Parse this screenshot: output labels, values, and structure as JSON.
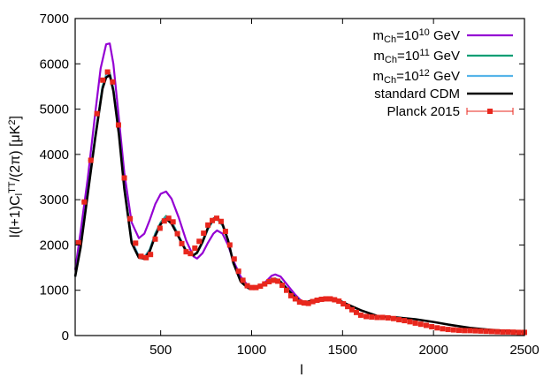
{
  "chart_data": {
    "type": "line",
    "xlabel": "l",
    "ylabel_parts": [
      "l(l+1)C",
      "l",
      "TT",
      "/(2π) [μK",
      "2",
      "]"
    ],
    "xlim": [
      30,
      2500
    ],
    "ylim": [
      0,
      7000
    ],
    "xticks": [
      500,
      1000,
      1500,
      2000,
      2500
    ],
    "yticks": [
      0,
      1000,
      2000,
      3000,
      4000,
      5000,
      6000,
      7000
    ],
    "grid": false,
    "legend_position": "top-right",
    "series": [
      {
        "legend_parts": [
          "m",
          "Ch",
          "=10",
          "10",
          " GeV"
        ],
        "color": "#9400d3",
        "kind": "line",
        "x": [
          30,
          60,
          100,
          140,
          170,
          200,
          220,
          240,
          270,
          300,
          340,
          380,
          410,
          440,
          470,
          500,
          530,
          560,
          600,
          640,
          680,
          700,
          730,
          760,
          790,
          810,
          840,
          870,
          900,
          940,
          980,
          1000,
          1040,
          1080,
          1110,
          1130,
          1160,
          1200,
          1240,
          1270,
          1300,
          1340,
          1380,
          1420,
          1450,
          1480,
          1520
        ],
        "y": [
          1450,
          2300,
          3500,
          4900,
          5900,
          6430,
          6450,
          6000,
          4800,
          3600,
          2500,
          2150,
          2250,
          2550,
          2900,
          3130,
          3180,
          3020,
          2600,
          2100,
          1750,
          1700,
          1820,
          2050,
          2250,
          2320,
          2250,
          2000,
          1650,
          1300,
          1100,
          1060,
          1080,
          1200,
          1320,
          1350,
          1300,
          1100,
          900,
          780,
          720,
          730,
          770,
          800,
          790,
          750,
          700
        ]
      },
      {
        "legend_parts": [
          "m",
          "Ch",
          "=10",
          "11",
          " GeV"
        ],
        "color": "#009e73",
        "kind": "line",
        "x": [
          30,
          60,
          100,
          140,
          180,
          200,
          220,
          240,
          270,
          300,
          340,
          380,
          410,
          440,
          470,
          500,
          530,
          560,
          600,
          640,
          680,
          700,
          730,
          760,
          790,
          810,
          840,
          870,
          900,
          940,
          980,
          1000,
          1040,
          1080,
          1110,
          1130,
          1160,
          1200,
          1240,
          1270,
          1300,
          1340,
          1380,
          1420,
          1450,
          1480,
          1520
        ],
        "y": [
          1300,
          2000,
          3200,
          4400,
          5500,
          5750,
          5800,
          5450,
          4500,
          3300,
          2100,
          1750,
          1730,
          1900,
          2250,
          2500,
          2640,
          2520,
          2200,
          1880,
          1780,
          1820,
          2050,
          2350,
          2550,
          2580,
          2430,
          2100,
          1600,
          1200,
          1060,
          1040,
          1070,
          1170,
          1250,
          1260,
          1200,
          1020,
          850,
          760,
          740,
          770,
          800,
          810,
          800,
          760,
          690
        ]
      },
      {
        "legend_parts": [
          "m",
          "Ch",
          "=10",
          "12",
          " GeV"
        ],
        "color": "#56b4e9",
        "kind": "line",
        "x": [
          30,
          60,
          100,
          140,
          180,
          200,
          220,
          240,
          270,
          300,
          340,
          380,
          410,
          440,
          470,
          500,
          530,
          560,
          600,
          640,
          680,
          700,
          730,
          760,
          790,
          810,
          840,
          870,
          900,
          940,
          980,
          1000,
          1040,
          1080,
          1110,
          1130,
          1160,
          1200,
          1240,
          1270,
          1300,
          1340,
          1380,
          1420,
          1450,
          1480,
          1520
        ],
        "y": [
          1300,
          1990,
          3190,
          4390,
          5480,
          5730,
          5780,
          5430,
          4480,
          3290,
          2100,
          1750,
          1730,
          1890,
          2230,
          2480,
          2610,
          2500,
          2190,
          1880,
          1780,
          1830,
          2060,
          2360,
          2560,
          2590,
          2440,
          2100,
          1600,
          1200,
          1060,
          1040,
          1070,
          1160,
          1240,
          1250,
          1190,
          1020,
          850,
          760,
          740,
          770,
          800,
          810,
          800,
          760,
          690
        ]
      },
      {
        "legend_parts": [
          "standard CDM"
        ],
        "color": "#000000",
        "kind": "line",
        "x": [
          30,
          60,
          100,
          140,
          180,
          200,
          220,
          240,
          270,
          300,
          340,
          380,
          410,
          440,
          470,
          500,
          530,
          560,
          600,
          640,
          680,
          700,
          730,
          760,
          790,
          810,
          840,
          870,
          900,
          940,
          980,
          1000,
          1040,
          1080,
          1110,
          1130,
          1160,
          1200,
          1240,
          1270,
          1300,
          1340,
          1380,
          1420,
          1450,
          1480,
          1520,
          1600,
          1700,
          1800,
          1900,
          2000,
          2100,
          2200,
          2300,
          2400,
          2500
        ],
        "y": [
          1300,
          1950,
          3150,
          4350,
          5450,
          5700,
          5750,
          5400,
          4450,
          3250,
          2050,
          1720,
          1700,
          1860,
          2200,
          2460,
          2580,
          2470,
          2170,
          1860,
          1770,
          1830,
          2070,
          2380,
          2580,
          2610,
          2460,
          2110,
          1600,
          1190,
          1050,
          1030,
          1060,
          1150,
          1230,
          1240,
          1180,
          1010,
          840,
          750,
          740,
          780,
          820,
          830,
          820,
          780,
          700,
          560,
          420,
          400,
          360,
          300,
          230,
          170,
          130,
          100,
          80
        ]
      },
      {
        "legend_parts": [
          "Planck 2015"
        ],
        "color": "#e8271d",
        "kind": "points",
        "x": [
          48,
          80,
          116,
          150,
          182,
          208,
          236,
          268,
          300,
          332,
          362,
          392,
          420,
          444,
          470,
          496,
          520,
          544,
          568,
          592,
          616,
          640,
          664,
          688,
          712,
          736,
          760,
          784,
          808,
          832,
          856,
          880,
          904,
          928,
          952,
          976,
          1000,
          1024,
          1048,
          1072,
          1096,
          1120,
          1144,
          1168,
          1192,
          1216,
          1240,
          1264,
          1288,
          1312,
          1336,
          1360,
          1384,
          1408,
          1432,
          1456,
          1480,
          1504,
          1528,
          1552,
          1576,
          1600,
          1630,
          1660,
          1690,
          1720,
          1750,
          1780,
          1810,
          1840,
          1870,
          1900,
          1930,
          1960,
          1990,
          2020,
          2050,
          2080,
          2110,
          2140,
          2170,
          2200,
          2230,
          2260,
          2290,
          2320,
          2350,
          2380,
          2410,
          2440,
          2470,
          2500
        ],
        "y": [
          2050,
          2950,
          3870,
          4900,
          5640,
          5820,
          5600,
          4650,
          3480,
          2580,
          2040,
          1750,
          1720,
          1790,
          2130,
          2370,
          2530,
          2590,
          2510,
          2250,
          2030,
          1850,
          1810,
          1930,
          2080,
          2260,
          2440,
          2540,
          2590,
          2520,
          2300,
          2000,
          1690,
          1420,
          1220,
          1100,
          1060,
          1060,
          1090,
          1140,
          1190,
          1220,
          1200,
          1110,
          1000,
          880,
          810,
          740,
          720,
          710,
          750,
          780,
          800,
          810,
          810,
          790,
          760,
          700,
          640,
          570,
          510,
          450,
          420,
          410,
          400,
          400,
          390,
          375,
          350,
          330,
          305,
          275,
          250,
          225,
          195,
          170,
          150,
          135,
          125,
          115,
          110,
          110,
          105,
          100,
          95,
          90,
          85,
          80,
          80,
          75,
          70,
          70
        ]
      }
    ]
  }
}
